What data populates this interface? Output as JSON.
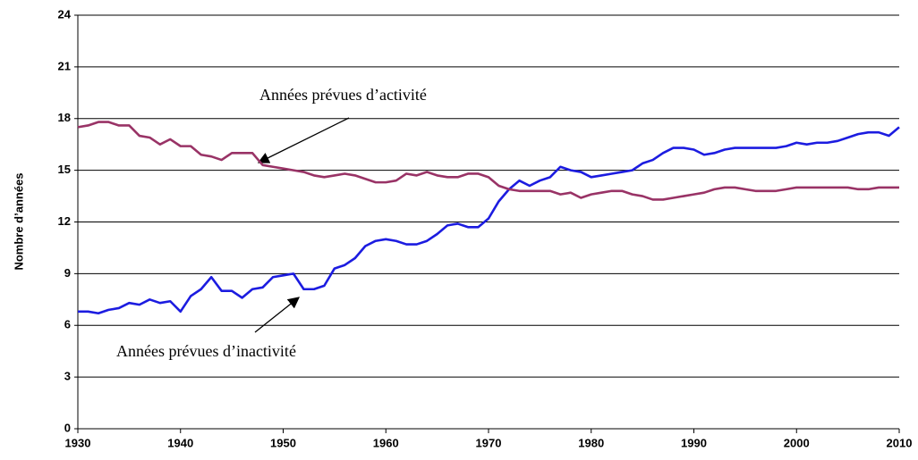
{
  "chart_data": {
    "type": "line",
    "ylabel": "Nombre d’années",
    "annotations": [
      "Années prévues d’activité",
      "Années prévues d’inactivité"
    ],
    "x": [
      1930,
      1931,
      1932,
      1933,
      1934,
      1935,
      1936,
      1937,
      1938,
      1939,
      1940,
      1941,
      1942,
      1943,
      1944,
      1945,
      1946,
      1947,
      1948,
      1949,
      1950,
      1951,
      1952,
      1953,
      1954,
      1955,
      1956,
      1957,
      1958,
      1959,
      1960,
      1961,
      1962,
      1963,
      1964,
      1965,
      1966,
      1967,
      1968,
      1969,
      1970,
      1971,
      1972,
      1973,
      1974,
      1975,
      1976,
      1977,
      1978,
      1979,
      1980,
      1981,
      1982,
      1983,
      1984,
      1985,
      1986,
      1987,
      1988,
      1989,
      1990,
      1991,
      1992,
      1993,
      1994,
      1995,
      1996,
      1997,
      1998,
      1999,
      2000,
      2001,
      2002,
      2003,
      2004,
      2005,
      2006,
      2007,
      2008,
      2009,
      2010
    ],
    "series": [
      {
        "name": "Années prévues d’inactivité",
        "color": "#1c1ce0",
        "values": [
          6.8,
          6.8,
          6.7,
          6.9,
          7.0,
          7.3,
          7.2,
          7.5,
          7.3,
          7.4,
          6.8,
          7.7,
          8.1,
          8.8,
          8.0,
          8.0,
          7.6,
          8.1,
          8.2,
          8.8,
          8.9,
          9.0,
          8.1,
          8.1,
          8.3,
          9.3,
          9.5,
          9.9,
          10.6,
          10.9,
          11.0,
          10.9,
          10.7,
          10.7,
          10.9,
          11.3,
          11.8,
          11.9,
          11.7,
          11.7,
          12.2,
          13.2,
          13.9,
          14.4,
          14.1,
          14.4,
          14.6,
          15.2,
          15.0,
          14.9,
          14.6,
          14.7,
          14.8,
          14.9,
          15.0,
          15.4,
          15.6,
          16.0,
          16.3,
          16.3,
          16.2,
          15.9,
          16.0,
          16.2,
          16.3,
          16.3,
          16.3,
          16.3,
          16.3,
          16.4,
          16.6,
          16.5,
          16.6,
          16.6,
          16.7,
          16.9,
          17.1,
          17.2,
          17.2,
          17.0,
          17.5
        ]
      },
      {
        "name": "Années prévues d’activité",
        "color": "#993366",
        "values": [
          17.5,
          17.6,
          17.8,
          17.8,
          17.6,
          17.6,
          17.0,
          16.9,
          16.5,
          16.8,
          16.4,
          16.4,
          15.9,
          15.8,
          15.6,
          16.0,
          16.0,
          16.0,
          15.3,
          15.2,
          15.1,
          15.0,
          14.9,
          14.7,
          14.6,
          14.7,
          14.8,
          14.7,
          14.5,
          14.3,
          14.3,
          14.4,
          14.8,
          14.7,
          14.9,
          14.7,
          14.6,
          14.6,
          14.8,
          14.8,
          14.6,
          14.1,
          13.9,
          13.8,
          13.8,
          13.8,
          13.8,
          13.6,
          13.7,
          13.4,
          13.6,
          13.7,
          13.8,
          13.8,
          13.6,
          13.5,
          13.3,
          13.3,
          13.4,
          13.5,
          13.6,
          13.7,
          13.9,
          14.0,
          14.0,
          13.9,
          13.8,
          13.8,
          13.8,
          13.9,
          14.0,
          14.0,
          14.0,
          14.0,
          14.0,
          14.0,
          13.9,
          13.9,
          14.0,
          14.0,
          14.0
        ]
      }
    ],
    "xlim": [
      1930,
      2010
    ],
    "xticks": [
      1930,
      1940,
      1950,
      1960,
      1970,
      1980,
      1990,
      2000,
      2010
    ],
    "ylim": [
      0,
      24
    ],
    "yticks": [
      0,
      3,
      6,
      9,
      12,
      15,
      18,
      21,
      24
    ],
    "grid": true
  }
}
